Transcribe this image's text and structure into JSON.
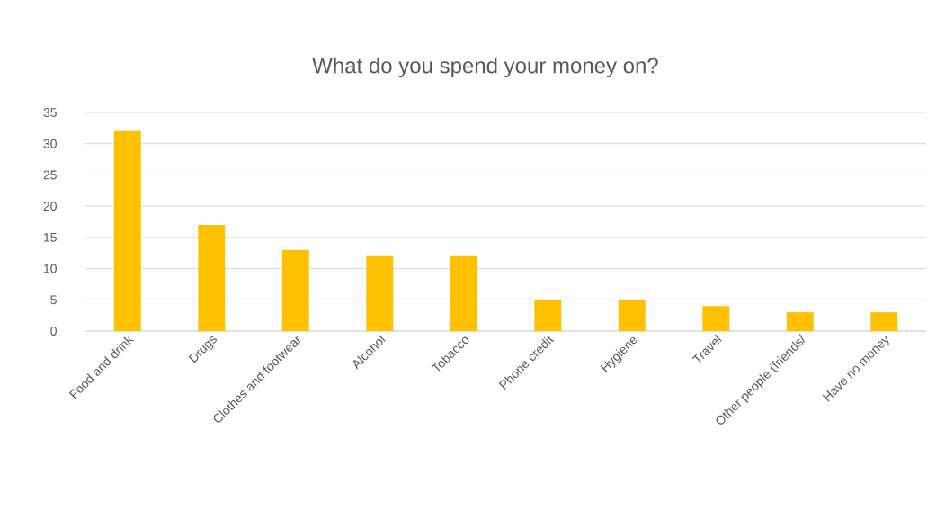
{
  "chart_data": {
    "type": "bar",
    "title": "What do you spend your money on?",
    "categories": [
      "Food and drink",
      "Drugs",
      "Clothes and footwear",
      "Alcohol",
      "Tobacco",
      "Phone credit",
      "Hygiene",
      "Travel",
      "Other people (friends/",
      "Have no money"
    ],
    "values": [
      32,
      17,
      13,
      12,
      12,
      5,
      5,
      4,
      3,
      3
    ],
    "color": "#ffc000",
    "ylim": [
      0,
      35
    ],
    "yticks": [
      0,
      5,
      10,
      15,
      20,
      25,
      30,
      35
    ],
    "grid": "y"
  }
}
